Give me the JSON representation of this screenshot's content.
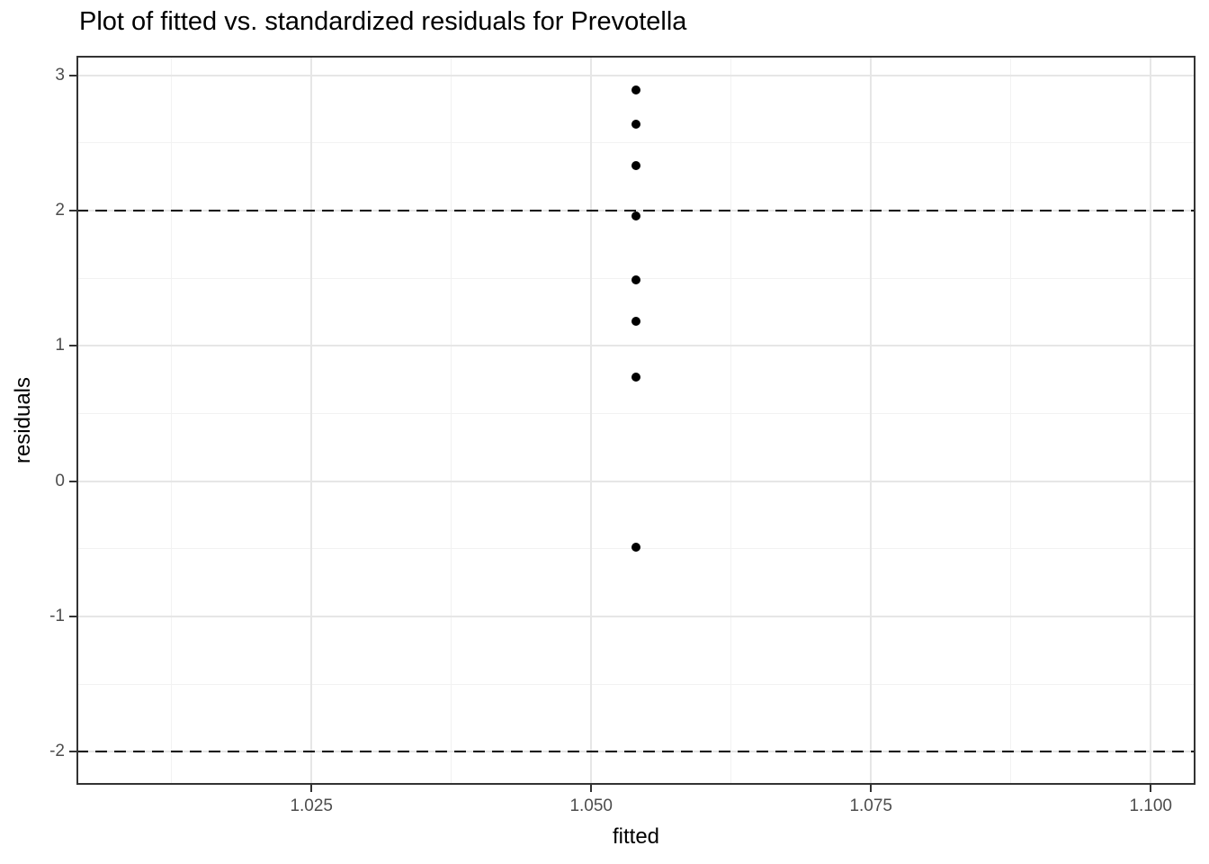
{
  "chart_data": {
    "type": "scatter",
    "title": "Plot of fitted vs. standardized residuals for Prevotella",
    "xlabel": "fitted",
    "ylabel": "residuals",
    "x": [
      1.054,
      1.054,
      1.054,
      1.054,
      1.054,
      1.054,
      1.054,
      1.054
    ],
    "y": [
      2.89,
      2.64,
      2.33,
      1.96,
      1.49,
      1.18,
      0.77,
      -0.49
    ],
    "xlim": [
      1.004,
      1.104
    ],
    "ylim": [
      -2.245,
      3.145
    ],
    "x_ticks": [
      {
        "value": 1.025,
        "label": "1.025"
      },
      {
        "value": 1.05,
        "label": "1.050"
      },
      {
        "value": 1.075,
        "label": "1.075"
      },
      {
        "value": 1.1,
        "label": "1.100"
      }
    ],
    "y_ticks": [
      {
        "value": -2,
        "label": "-2"
      },
      {
        "value": -1,
        "label": "-1"
      },
      {
        "value": 0,
        "label": "0"
      },
      {
        "value": 1,
        "label": "1"
      },
      {
        "value": 2,
        "label": "2"
      },
      {
        "value": 3,
        "label": "3"
      }
    ],
    "x_minor_ticks": [
      1.0125,
      1.0375,
      1.0625,
      1.0875
    ],
    "y_minor_ticks": [
      -1.5,
      -0.5,
      0.5,
      1.5,
      2.5
    ],
    "hlines": [
      {
        "y": 2,
        "style": "dashed"
      },
      {
        "y": -2,
        "style": "dashed"
      }
    ],
    "grid": "major+minor",
    "legend": false,
    "colors": {
      "point": "#000000",
      "hline": "#000000",
      "grid_major": "#e6e6e6",
      "grid_minor": "#f2f2f2",
      "panel_border": "#333333",
      "tick_mark": "#333333",
      "tick_label": "#4d4d4d",
      "axis_title": "#000000",
      "background": "#ffffff"
    }
  }
}
